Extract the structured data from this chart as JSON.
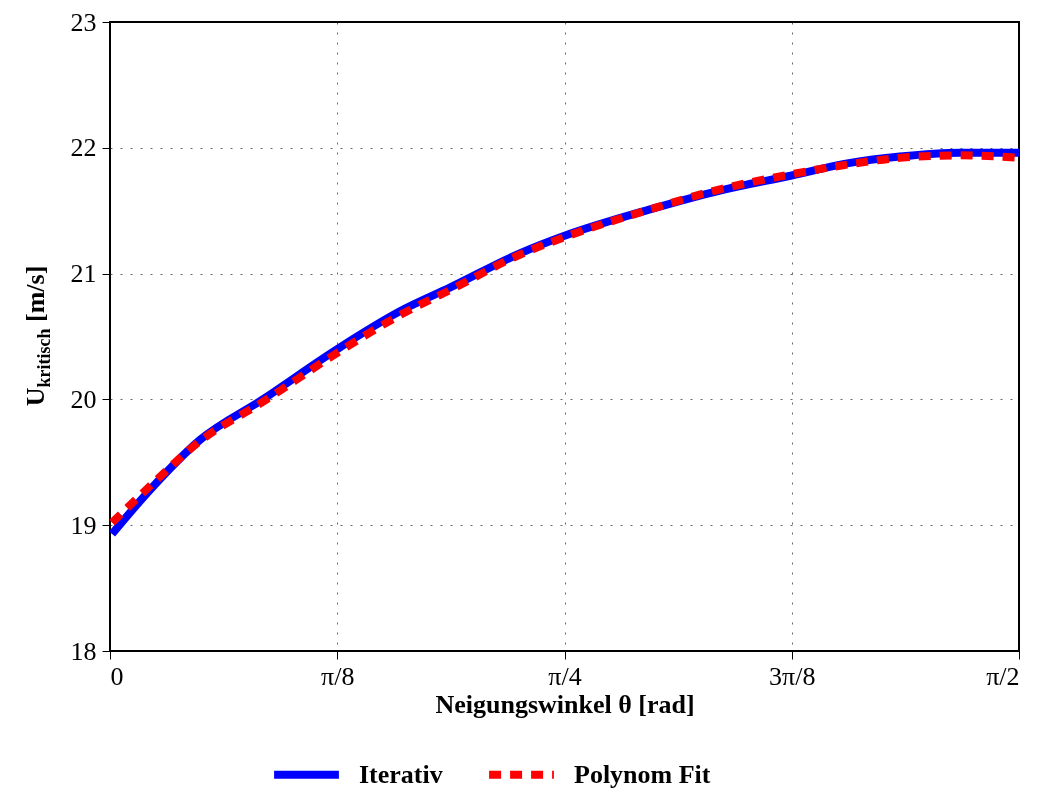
{
  "chart_data": {
    "type": "line",
    "xlabel": "Neigungswinkel θ [rad]",
    "ylabel": "U$_{kritisch}$ [m/s]",
    "xlim": [
      0,
      1.5708
    ],
    "xticks": [
      0,
      {
        "value": 0.3927,
        "label": "π/8"
      },
      {
        "value": 0.7854,
        "label": "π/4"
      },
      {
        "value": 1.1781,
        "label": "3π/8"
      },
      {
        "value": 1.5708,
        "label": "π/2"
      }
    ],
    "ylim": [
      18,
      23
    ],
    "yticks": [
      18,
      19,
      20,
      21,
      22,
      23
    ],
    "grid": true,
    "legend": "bottom",
    "series": [
      {
        "name": "Iterativ",
        "color": "#0000ff",
        "line_style": "solid",
        "x": [
          0.0035,
          0.069,
          0.156,
          0.264,
          0.3927,
          0.501,
          0.588,
          0.708,
          0.7854,
          0.933,
          1.054,
          1.1781,
          1.279,
          1.365,
          1.469,
          1.5708
        ],
        "values": [
          18.93,
          19.28,
          19.68,
          20.0,
          20.4,
          20.7,
          20.89,
          21.16,
          21.3,
          21.51,
          21.66,
          21.78,
          21.88,
          21.93,
          21.96,
          21.96
        ]
      },
      {
        "name": "Polynom Fit",
        "color": "#ff0000",
        "line_style": "dashed",
        "x": [
          0.0035,
          0.069,
          0.156,
          0.264,
          0.3927,
          0.501,
          0.588,
          0.708,
          0.7854,
          0.933,
          1.054,
          1.1781,
          1.279,
          1.365,
          1.469,
          1.5708
        ],
        "values": [
          19.02,
          19.31,
          19.67,
          19.98,
          20.37,
          20.67,
          20.87,
          21.15,
          21.29,
          21.51,
          21.67,
          21.79,
          21.87,
          21.92,
          21.94,
          21.92
        ]
      }
    ]
  }
}
